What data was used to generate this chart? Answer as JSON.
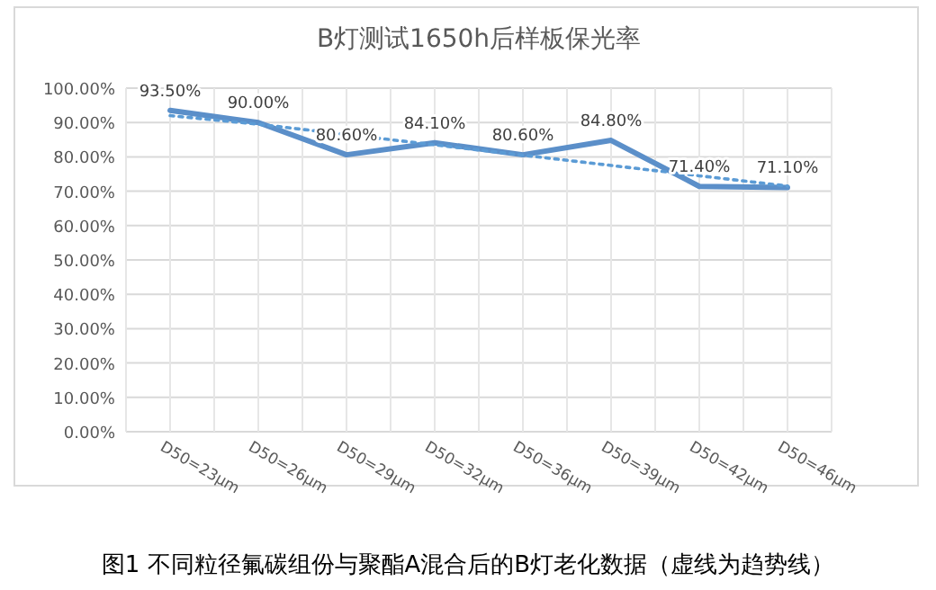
{
  "chart_data": {
    "type": "line",
    "title": "B灯测试1650h后样板保光率",
    "categories": [
      "D50=23μm",
      "D50=26μm",
      "D50=29μm",
      "D50=32μm",
      "D50=36μm",
      "D50=39μm",
      "D50=42μm",
      "D50=46μm"
    ],
    "series": [
      {
        "color": "#5b8fc9",
        "values": [
          93.5,
          90.0,
          80.6,
          84.1,
          80.6,
          84.8,
          71.4,
          71.1
        ],
        "value_labels": [
          "93.50%",
          "90.00%",
          "80.60%",
          "84.10%",
          "80.60%",
          "84.80%",
          "71.40%",
          "71.10%"
        ],
        "line_style": "solid"
      },
      {
        "type": "line",
        "color": "#5b9bd5",
        "values": [
          92,
          89.5,
          86.5,
          83.5,
          80.5,
          77.5,
          74.5,
          71.5
        ],
        "line_style": "dotted"
      }
    ],
    "ylim": [
      0,
      100
    ],
    "yticks": [
      {
        "value": 0,
        "label": "0.00%"
      },
      {
        "value": 10,
        "label": "10.00%"
      },
      {
        "value": 20,
        "label": "20.00%"
      },
      {
        "value": 30,
        "label": "30.00%"
      },
      {
        "value": 40,
        "label": "40.00%"
      },
      {
        "value": 50,
        "label": "50.00%"
      },
      {
        "value": 60,
        "label": "60.00%"
      },
      {
        "value": 70,
        "label": "70.00%"
      },
      {
        "value": 80,
        "label": "80.00%"
      },
      {
        "value": 90,
        "label": "90.00%"
      },
      {
        "value": 100,
        "label": "100.00%"
      }
    ],
    "grid": true,
    "marker": "none",
    "annotations": [
      "图1 不同粒径氟碳组份与聚酯A混合后的B灯老化数据（虚线为趋势线）"
    ]
  }
}
